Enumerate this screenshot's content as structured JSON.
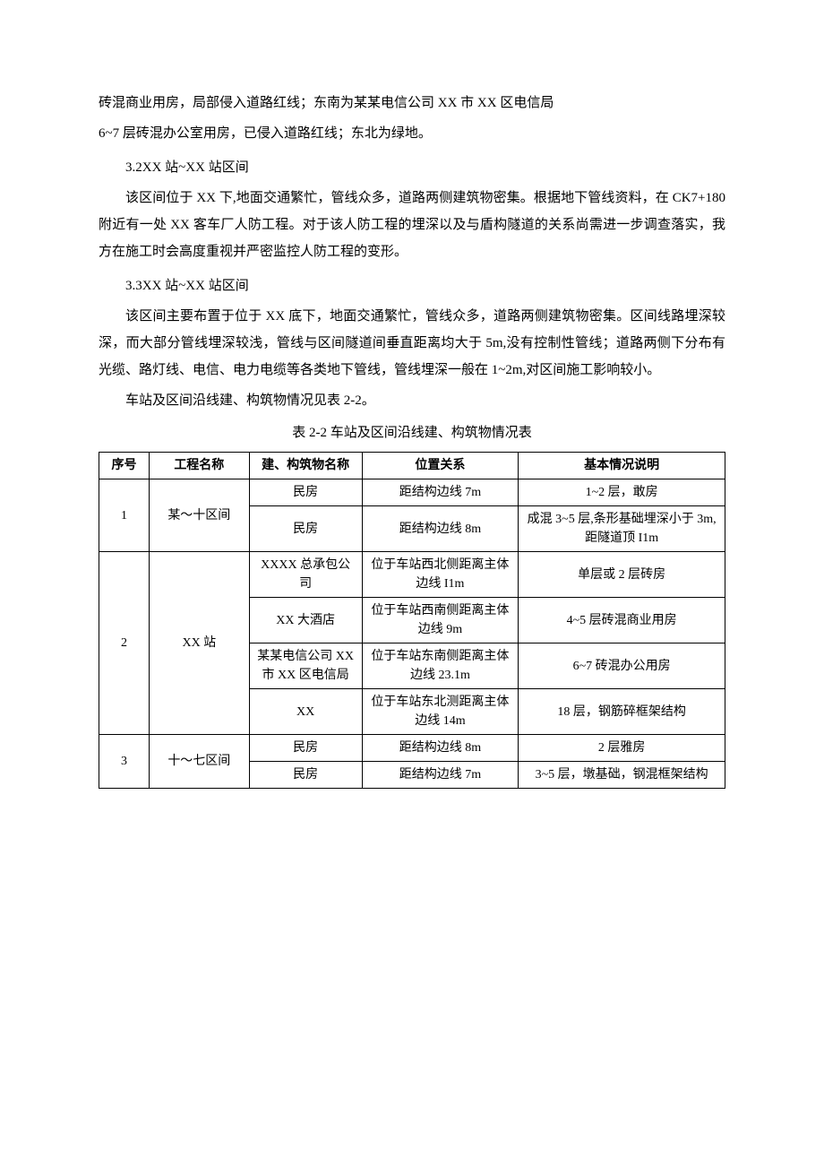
{
  "paragraphs": {
    "p1": "砖混商业用房，局部侵入道路红线；东南为某某电信公司 XX 市 XX 区电信局",
    "p2": "6~7 层砖混办公室用房，已侵入道路红线；东北为绿地。",
    "p3": "3.2XX 站~XX 站区间",
    "p4": "该区间位于 XX 下,地面交通繁忙，管线众多，道路两侧建筑物密集。根据地下管线资料，在 CK7+180 附近有一处 XX 客车厂人防工程。对于该人防工程的埋深以及与盾构隧道的关系尚需进一步调查落实，我方在施工时会高度重视并严密监控人防工程的变形。",
    "p5": "3.3XX 站~XX 站区间",
    "p6": "该区间主要布置于位于 XX 底下，地面交通繁忙，管线众多，道路两侧建筑物密集。区间线路埋深较深，而大部分管线埋深较浅，管线与区间隧道间垂直距离均大于 5m,没有控制性管线；道路两侧下分布有光缆、路灯线、电信、电力电缆等各类地下管线，管线埋深一般在 1~2m,对区间施工影响较小。",
    "p7": "车站及区间沿线建、构筑物情况见表 2-2。"
  },
  "table": {
    "caption": "表 2-2 车站及区间沿线建、构筑物情况表",
    "headers": {
      "h1": "序号",
      "h2": "工程名称",
      "h3": "建、构筑物名称",
      "h4": "位置关系",
      "h5": "基本情况说明"
    },
    "rows": {
      "r1": {
        "seq": "1",
        "proj": "某～十区间",
        "name": "民房",
        "pos": "距结构边线 7m",
        "desc": "1~2 层，敢房"
      },
      "r2": {
        "name": "民房",
        "pos": "距结构边线 8m",
        "desc": "成混 3~5 层,条形基础埋深小于 3m,距隧道顶 I1m"
      },
      "r3": {
        "seq": "2",
        "proj": "XX 站",
        "name": "XXXX 总承包公司",
        "pos": "位于车站西北侧距离主体边线 I1m",
        "desc": "单层或 2 层砖房"
      },
      "r4": {
        "name": "XX 大酒店",
        "pos": "位于车站西南侧距离主体边线 9m",
        "desc": "4~5 层砖混商业用房"
      },
      "r5": {
        "name": "某某电信公司 XX 市 XX 区电信局",
        "pos": "位于车站东南侧距离主体边线 23.1m",
        "desc": "6~7 砖混办公用房"
      },
      "r6": {
        "name": "XX",
        "pos": "位于车站东北测距离主体边线 14m",
        "desc": "18 层，钢筋碎框架结构"
      },
      "r7": {
        "seq": "3",
        "proj": "十～七区间",
        "name": "民房",
        "pos": "距结构边线 8m",
        "desc": "2 层雅房"
      },
      "r8": {
        "name": "民房",
        "pos": "距结构边线 7m",
        "desc": "3~5 层，墩基础，钢混框架结构"
      }
    }
  }
}
